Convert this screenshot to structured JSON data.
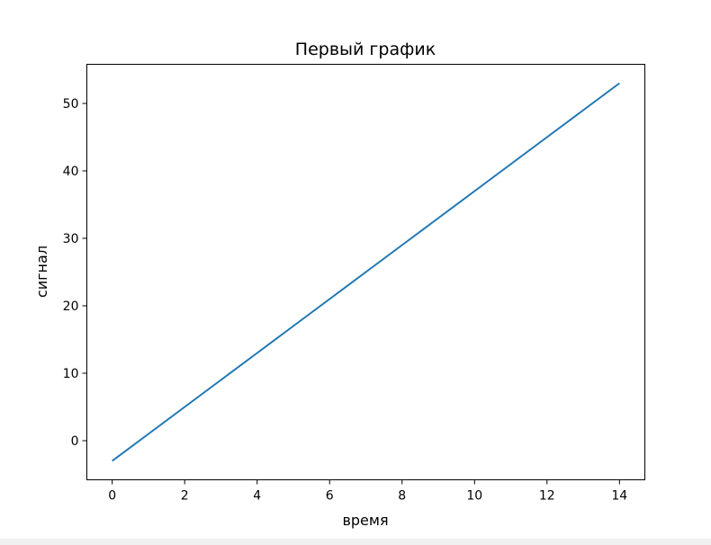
{
  "chart_data": {
    "type": "line",
    "title": "Первый график",
    "xlabel": "время",
    "ylabel": "сигнал",
    "x": [
      0,
      1,
      2,
      3,
      4,
      5,
      6,
      7,
      8,
      9,
      10,
      11,
      12,
      13,
      14
    ],
    "series": [
      {
        "values": [
          -3,
          1,
          5,
          9,
          13,
          17,
          21,
          25,
          29,
          33,
          37,
          41,
          45,
          49,
          53
        ],
        "color": "#1f77b4"
      }
    ],
    "xlim": [
      -0.7,
      14.7
    ],
    "ylim": [
      -5.8,
      55.8
    ],
    "xticks": [
      0,
      2,
      4,
      6,
      8,
      10,
      12,
      14
    ],
    "yticks": [
      0,
      10,
      20,
      30,
      40,
      50
    ],
    "grid": false
  }
}
